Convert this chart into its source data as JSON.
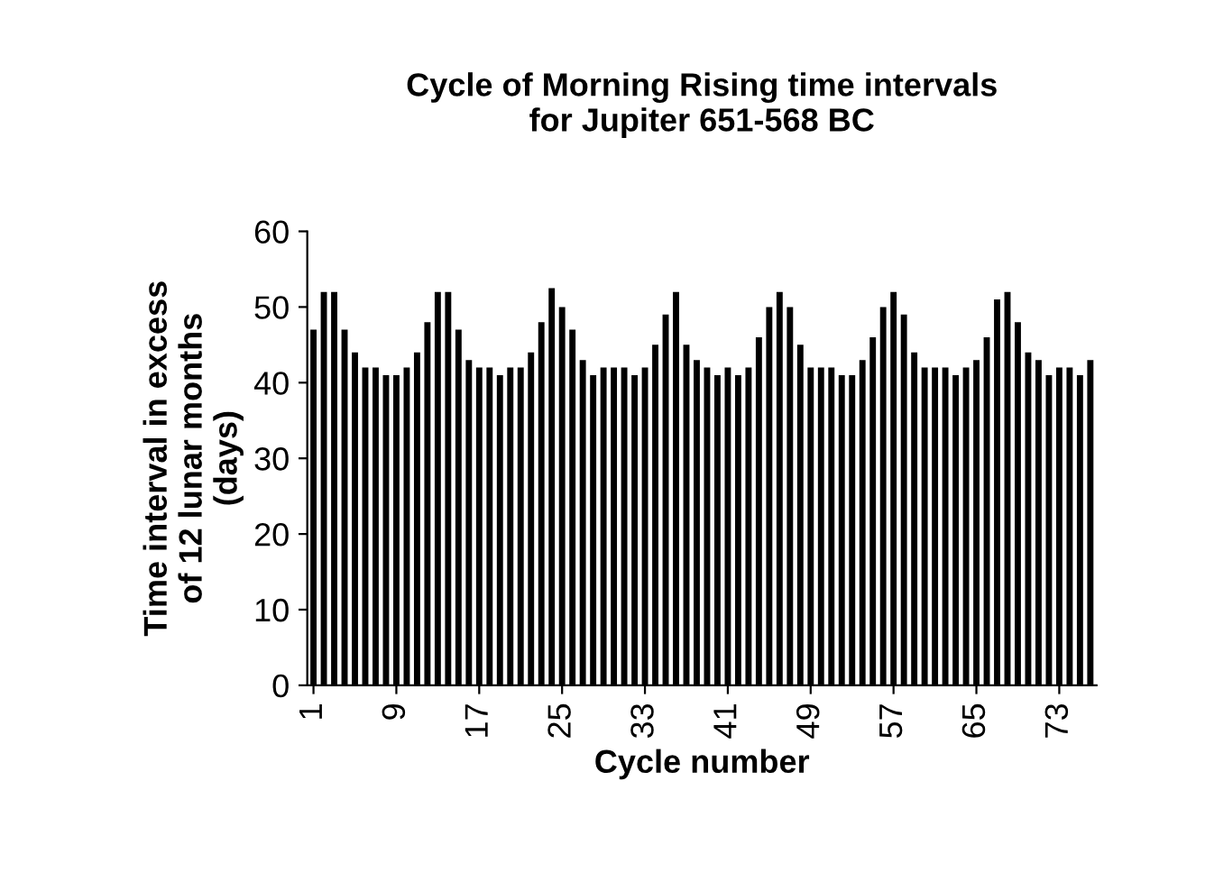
{
  "chart_data": {
    "type": "bar",
    "title": "Cycle of Morning Rising time intervals\nfor Jupiter 651-568 BC",
    "xlabel": "Cycle number",
    "ylabel": "Time interval in excess\nof 12 lunar months\n(days)",
    "categories": [
      "1",
      null,
      null,
      null,
      null,
      null,
      null,
      null,
      "9",
      null,
      null,
      null,
      null,
      null,
      null,
      null,
      "17",
      null,
      null,
      null,
      null,
      null,
      null,
      null,
      "25",
      null,
      null,
      null,
      null,
      null,
      null,
      null,
      "33",
      null,
      null,
      null,
      null,
      null,
      null,
      null,
      "41",
      null,
      null,
      null,
      null,
      null,
      null,
      null,
      "49",
      null,
      null,
      null,
      null,
      null,
      null,
      null,
      "57",
      null,
      null,
      null,
      null,
      null,
      null,
      null,
      "65",
      null,
      null,
      null,
      null,
      null,
      null,
      null,
      "73",
      null,
      null,
      null
    ],
    "values": [
      47,
      52,
      52,
      47,
      44,
      42,
      42,
      41,
      41,
      42,
      44,
      48,
      52,
      52,
      47,
      43,
      42,
      42,
      41,
      42,
      42,
      44,
      48,
      52.5,
      50,
      47,
      43,
      41,
      42,
      42,
      42,
      41,
      42,
      45,
      49,
      52,
      45,
      43,
      42,
      41,
      42,
      41,
      42,
      46,
      50,
      52,
      50,
      45,
      42,
      42,
      42,
      41,
      41,
      43,
      46,
      50,
      52,
      49,
      44,
      42,
      42,
      42,
      41,
      42,
      43,
      46,
      51,
      52,
      48,
      44,
      43,
      41,
      42,
      42,
      41,
      43
    ],
    "color": "#000000",
    "ylim": [
      0,
      60
    ],
    "yticks": [
      0,
      10,
      20,
      30,
      40,
      50,
      60
    ],
    "grid": false
  }
}
